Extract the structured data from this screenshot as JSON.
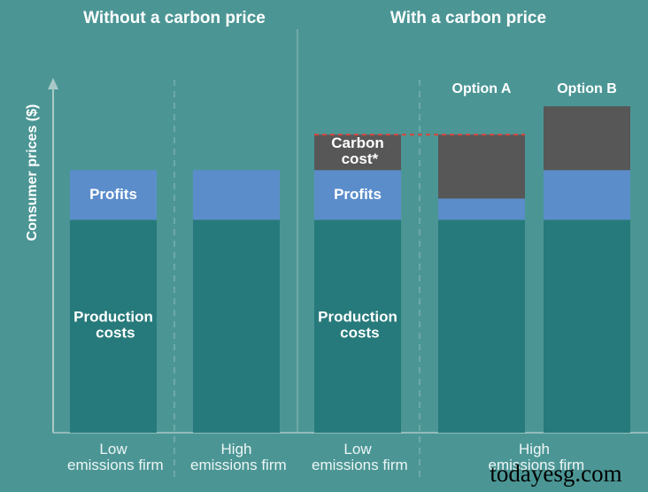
{
  "chart_data": {
    "type": "bar",
    "stacked": true,
    "panel_titles": [
      "Without a carbon price",
      "With a carbon price"
    ],
    "y_label": "Consumer prices ($)",
    "categories": [
      "Low emissions firm",
      "High emissions firm",
      "Low emissions firm",
      "High emissions firm",
      null
    ],
    "bar_titles": [
      null,
      null,
      null,
      "Option A",
      "Option B"
    ],
    "series": [
      {
        "name": "Production costs",
        "color": "#277a7b",
        "values": [
          60,
          60,
          60,
          60,
          60
        ]
      },
      {
        "name": "Profits",
        "color": "#5b8dcb",
        "values": [
          14,
          14,
          14,
          6,
          14
        ]
      },
      {
        "name": "Carbon cost*",
        "color": "#575757",
        "values": [
          null,
          null,
          10,
          18,
          18
        ]
      }
    ],
    "reference_line": {
      "value": 84,
      "color": "#d8453a"
    },
    "ylim": [
      0,
      100
    ],
    "watermark": "todayesg.com"
  }
}
